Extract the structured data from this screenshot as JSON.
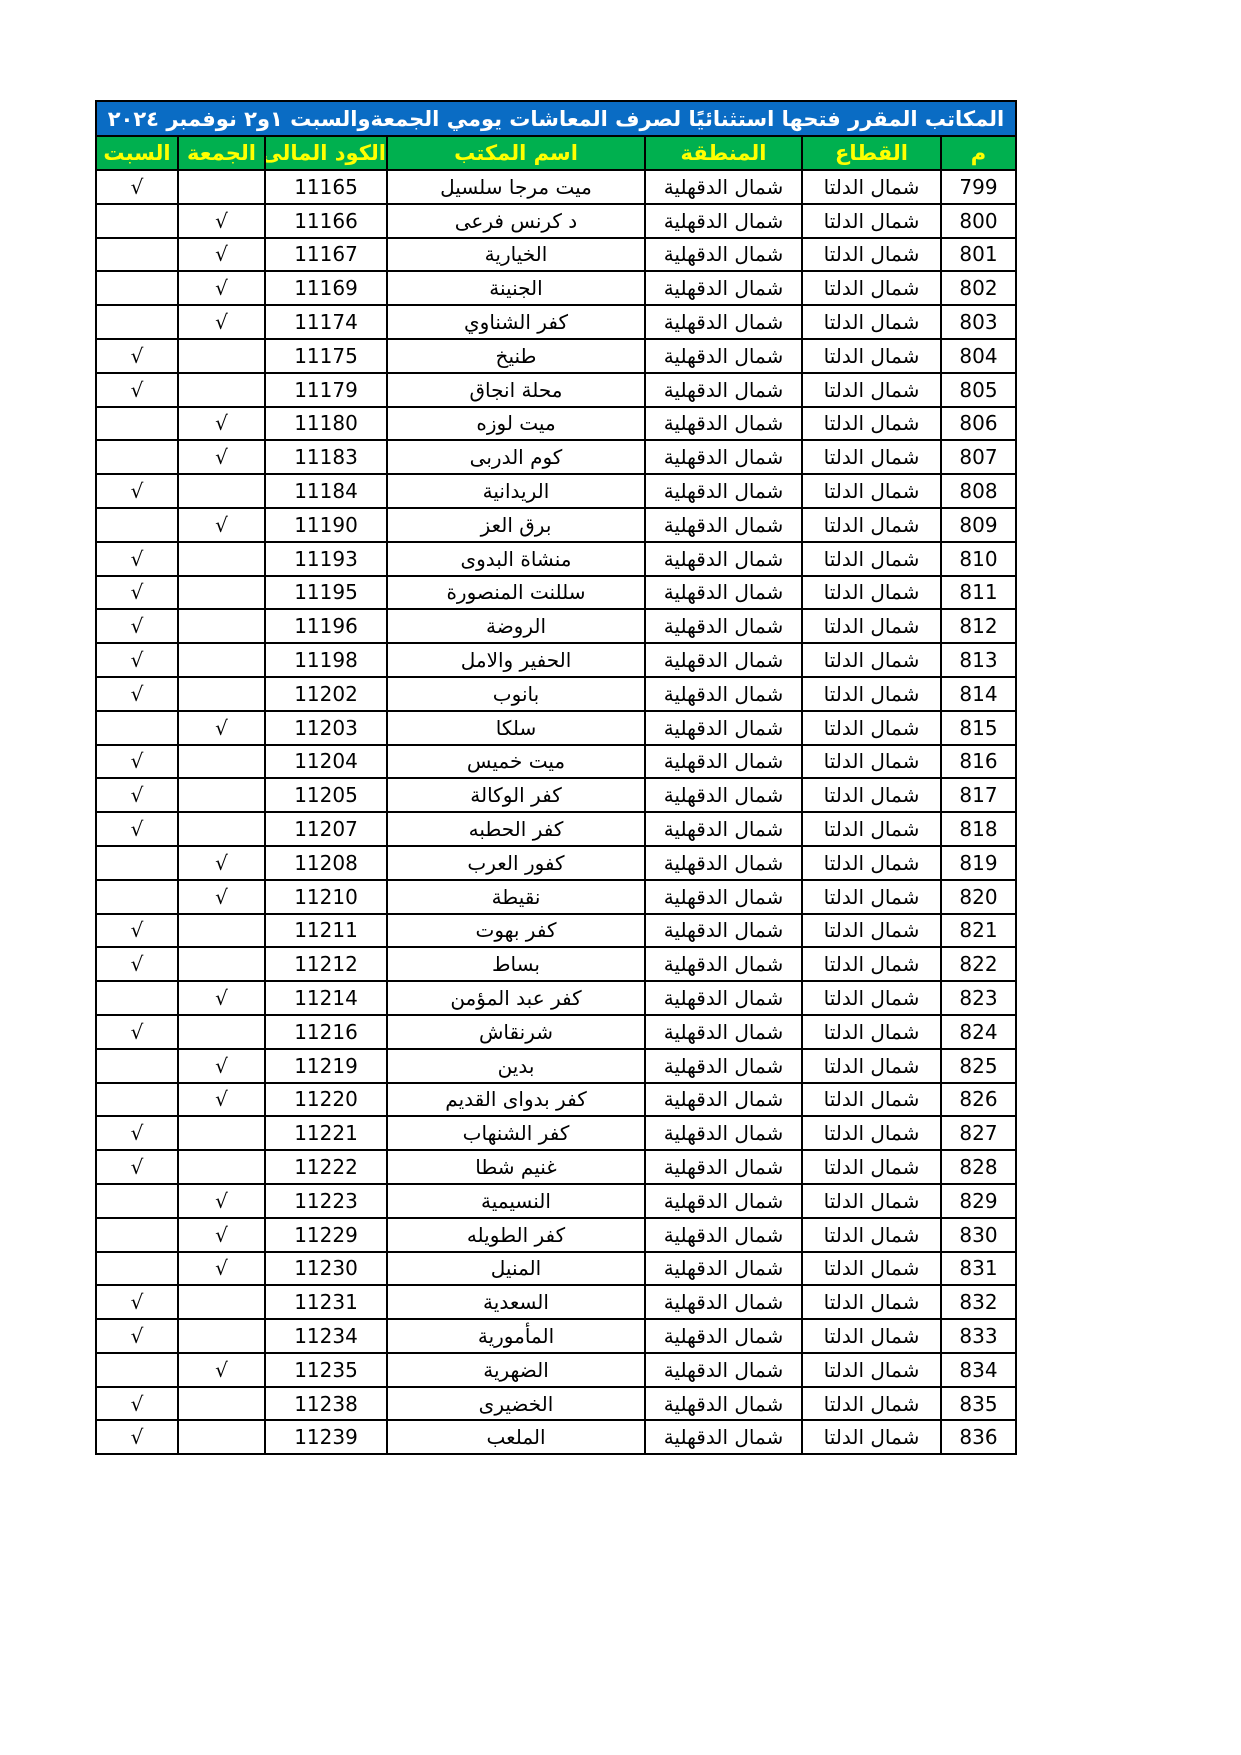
{
  "title": "المكاتب المقرر فتحها استثنائيًا لصرف المعاشات يومي الجمعةوالسبت ١و٢ نوفمبر ٢٠٢٤",
  "headers": {
    "num": "م",
    "sector": "القطاع",
    "region": "المنطقة",
    "office": "اسم المكتب",
    "code": "الكود المالى",
    "friday": "الجمعة",
    "saturday": "السبت"
  },
  "check_mark": "√",
  "sector_value": "شمال الدلتا",
  "region_value": "شمال الدقهلية",
  "rows": [
    {
      "num": "799",
      "office": "ميت مرجا سلسيل",
      "code": "11165",
      "friday": "",
      "saturday": "√"
    },
    {
      "num": "800",
      "office": "د كرنس فرعى",
      "code": "11166",
      "friday": "√",
      "saturday": ""
    },
    {
      "num": "801",
      "office": "الخيارية",
      "code": "11167",
      "friday": "√",
      "saturday": ""
    },
    {
      "num": "802",
      "office": "الجنينة",
      "code": "11169",
      "friday": "√",
      "saturday": ""
    },
    {
      "num": "803",
      "office": "كفر الشناوي",
      "code": "11174",
      "friday": "√",
      "saturday": ""
    },
    {
      "num": "804",
      "office": "طنيخ",
      "code": "11175",
      "friday": "",
      "saturday": "√"
    },
    {
      "num": "805",
      "office": "محلة انجاق",
      "code": "11179",
      "friday": "",
      "saturday": "√"
    },
    {
      "num": "806",
      "office": "ميت لوزه",
      "code": "11180",
      "friday": "√",
      "saturday": ""
    },
    {
      "num": "807",
      "office": "كوم الدربى",
      "code": "11183",
      "friday": "√",
      "saturday": ""
    },
    {
      "num": "808",
      "office": "الريدانية",
      "code": "11184",
      "friday": "",
      "saturday": "√"
    },
    {
      "num": "809",
      "office": "برق العز",
      "code": "11190",
      "friday": "√",
      "saturday": ""
    },
    {
      "num": "810",
      "office": "منشاة البدوى",
      "code": "11193",
      "friday": "",
      "saturday": "√"
    },
    {
      "num": "811",
      "office": "سللنت المنصورة",
      "code": "11195",
      "friday": "",
      "saturday": "√"
    },
    {
      "num": "812",
      "office": "الروضة",
      "code": "11196",
      "friday": "",
      "saturday": "√"
    },
    {
      "num": "813",
      "office": "الحفير والامل",
      "code": "11198",
      "friday": "",
      "saturday": "√"
    },
    {
      "num": "814",
      "office": "بانوب",
      "code": "11202",
      "friday": "",
      "saturday": "√"
    },
    {
      "num": "815",
      "office": "سلكا",
      "code": "11203",
      "friday": "√",
      "saturday": ""
    },
    {
      "num": "816",
      "office": "ميت خميس",
      "code": "11204",
      "friday": "",
      "saturday": "√"
    },
    {
      "num": "817",
      "office": "كفر الوكالة",
      "code": "11205",
      "friday": "",
      "saturday": "√"
    },
    {
      "num": "818",
      "office": "كفر الحطبه",
      "code": "11207",
      "friday": "",
      "saturday": "√"
    },
    {
      "num": "819",
      "office": "كفور العرب",
      "code": "11208",
      "friday": "√",
      "saturday": ""
    },
    {
      "num": "820",
      "office": "نقيطة",
      "code": "11210",
      "friday": "√",
      "saturday": ""
    },
    {
      "num": "821",
      "office": "كفر بهوت",
      "code": "11211",
      "friday": "",
      "saturday": "√"
    },
    {
      "num": "822",
      "office": "بساط",
      "code": "11212",
      "friday": "",
      "saturday": "√"
    },
    {
      "num": "823",
      "office": "كفر عبد المؤمن",
      "code": "11214",
      "friday": "√",
      "saturday": ""
    },
    {
      "num": "824",
      "office": "شرنقاش",
      "code": "11216",
      "friday": "",
      "saturday": "√"
    },
    {
      "num": "825",
      "office": "بدين",
      "code": "11219",
      "friday": "√",
      "saturday": ""
    },
    {
      "num": "826",
      "office": "كفر بدواى القديم",
      "code": "11220",
      "friday": "√",
      "saturday": ""
    },
    {
      "num": "827",
      "office": "كفر الشنهاب",
      "code": "11221",
      "friday": "",
      "saturday": "√"
    },
    {
      "num": "828",
      "office": "غنيم شطا",
      "code": "11222",
      "friday": "",
      "saturday": "√"
    },
    {
      "num": "829",
      "office": "النسيمية",
      "code": "11223",
      "friday": "√",
      "saturday": ""
    },
    {
      "num": "830",
      "office": "كفر الطويله",
      "code": "11229",
      "friday": "√",
      "saturday": ""
    },
    {
      "num": "831",
      "office": "المنيل",
      "code": "11230",
      "friday": "√",
      "saturday": ""
    },
    {
      "num": "832",
      "office": "السعدية",
      "code": "11231",
      "friday": "",
      "saturday": "√"
    },
    {
      "num": "833",
      "office": "المأمورية",
      "code": "11234",
      "friday": "",
      "saturday": "√"
    },
    {
      "num": "834",
      "office": "الضهرية",
      "code": "11235",
      "friday": "√",
      "saturday": ""
    },
    {
      "num": "835",
      "office": "الخضيرى",
      "code": "11238",
      "friday": "",
      "saturday": "√"
    },
    {
      "num": "836",
      "office": "الملعب",
      "code": "11239",
      "friday": "",
      "saturday": "√"
    }
  ],
  "colors": {
    "title_bg": "#0a6cc4",
    "title_text": "#ffffff",
    "header_bg": "#00b04f",
    "header_text": "#ffff00"
  }
}
